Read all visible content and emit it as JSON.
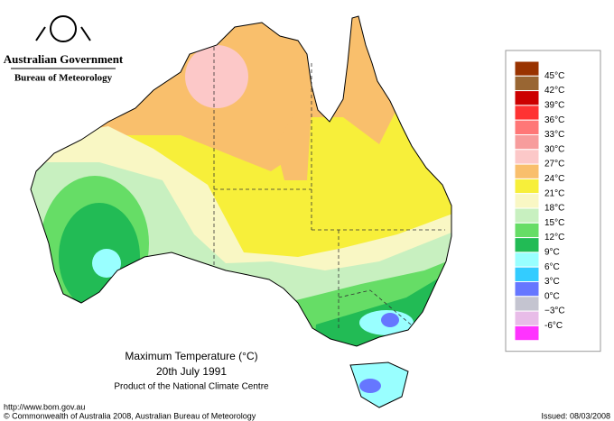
{
  "header": {
    "government": "Australian Government",
    "bureau": "Bureau of Meteorology"
  },
  "map": {
    "title": "Maximum Temperature (°C)",
    "date": "20th July 1991",
    "subtitle": "Product of the National Climate Centre"
  },
  "legend": {
    "cap_color": "#993300",
    "items": [
      {
        "label": "45°C",
        "color": "#996633"
      },
      {
        "label": "42°C",
        "color": "#cc0000"
      },
      {
        "label": "39°C",
        "color": "#ff3333"
      },
      {
        "label": "36°C",
        "color": "#ff7777"
      },
      {
        "label": "33°C",
        "color": "#f79c9c"
      },
      {
        "label": "30°C",
        "color": "#fcc8c8"
      },
      {
        "label": "27°C",
        "color": "#f9bf6c"
      },
      {
        "label": "24°C",
        "color": "#f7ef3a"
      },
      {
        "label": "21°C",
        "color": "#f9f7c4"
      },
      {
        "label": "18°C",
        "color": "#c8f0c0"
      },
      {
        "label": "15°C",
        "color": "#66dd66"
      },
      {
        "label": "12°C",
        "color": "#22bb55"
      },
      {
        "label": "9°C",
        "color": "#99ffff"
      },
      {
        "label": "6°C",
        "color": "#33ccff"
      },
      {
        "label": "3°C",
        "color": "#6677ff"
      },
      {
        "label": "0°C",
        "color": "#c4c4d0"
      },
      {
        "label": "−3°C",
        "color": "#e8bce8"
      },
      {
        "label": "-6°C",
        "color": "#ff33ff"
      }
    ]
  },
  "footer": {
    "url": "http://www.bom.gov.au",
    "copyright": "© Commonwealth of Australia 2008, Australian Bureau of Meteorology",
    "issued": "Issued: 08/03/2008"
  }
}
